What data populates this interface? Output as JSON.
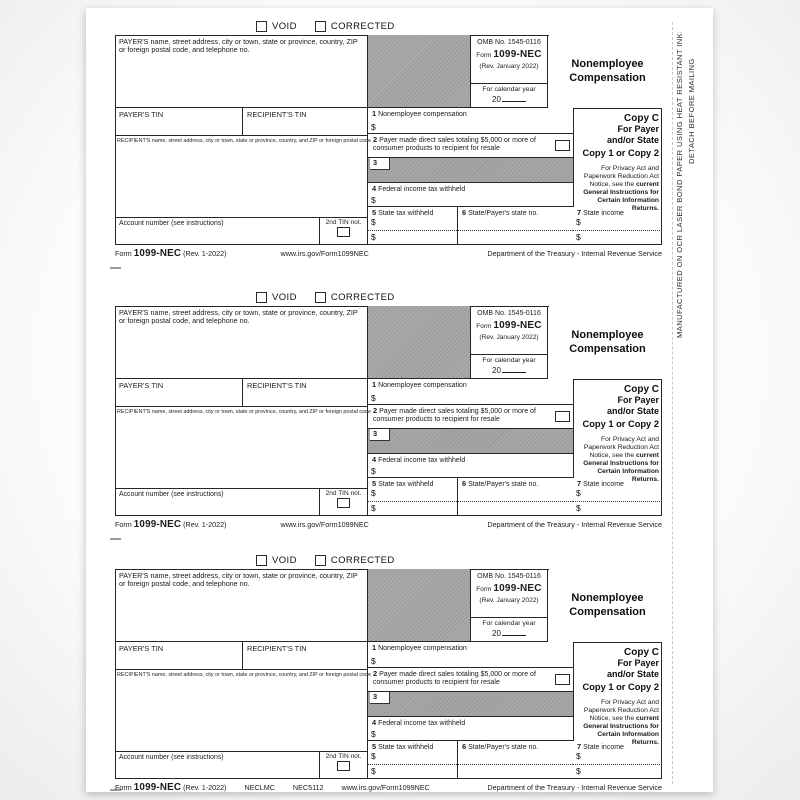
{
  "page": {
    "background": "#fbfbfa",
    "sheet_color": "#fffffe"
  },
  "edge": {
    "detach_text": "DETACH BEFORE MAILING",
    "manufactured_text": "MANUFACTURED ON OCR LASER BOND PAPER USING HEAT RESISTANT INKS"
  },
  "form": {
    "void_label": "VOID",
    "corrected_label": "CORRECTED",
    "payer_info_label": "PAYER'S name, street address, city or town, state or province, country, ZIP or foreign postal code, and telephone no.",
    "omb_number": "OMB No. 1545-0116",
    "form_word": "Form",
    "form_number": "1099-NEC",
    "revision": "(Rev. January 2022)",
    "calendar_label": "For calendar year",
    "calendar_year": "20",
    "title": "Nonemployee Compensation",
    "payer_tin_label": "PAYER'S TIN",
    "recipient_tin_label": "RECIPIENT'S TIN",
    "dollar_sign": "$",
    "box1_num": "1",
    "box1_label": "Nonemployee compensation",
    "box2_num": "2",
    "box2_label": "Payer made direct sales totaling $5,000 or more of consumer products to recipient for resale",
    "box3_num": "3",
    "box4_num": "4",
    "box4_label": "Federal income tax withheld",
    "box5_num": "5",
    "box5_label": "State tax withheld",
    "box6_num": "6",
    "box6_label": "State/Payer's state no.",
    "box7_num": "7",
    "box7_label": "State income",
    "recipient_info_label": "RECIPIENT'S name, street address, city or town, state or province, country, and ZIP or foreign postal code",
    "account_label": "Account number (see instructions)",
    "second_tin_label": "2nd TIN not.",
    "copy_line1": "Copy C",
    "copy_line2": "For Payer",
    "copy_line3": "and/or State",
    "copy_line4": "Copy 1 or Copy 2",
    "privacy_text": "For Privacy Act and Paperwork Reduction Act Notice, see the",
    "privacy_bold": "current General Instructions for Certain Information Returns.",
    "footer_form_word": "Form",
    "footer_form_number": "1099-NEC",
    "footer_revision": "(Rev. 1-2022)",
    "footer_url": "www.irs.gov/Form1099NEC",
    "footer_department": "Department of the Treasury - Internal Revenue Service"
  },
  "copies": [
    {
      "code1": "",
      "code2": ""
    },
    {
      "code1": "",
      "code2": ""
    },
    {
      "code1": "NECLMC",
      "code2": "NEC5112"
    }
  ],
  "colors": {
    "shaded_box": "#a5a5a5",
    "border": "#262626"
  }
}
